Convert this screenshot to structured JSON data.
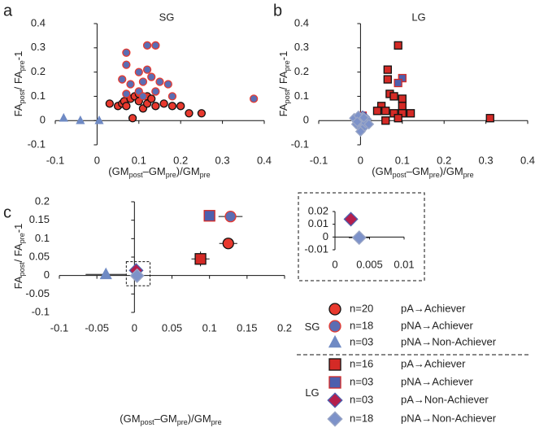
{
  "chart_data": [
    {
      "type": "scatter",
      "letter": "a",
      "title": "SG",
      "x_label": [
        "(GM",
        "post",
        "–GM",
        "pre",
        ")/GM",
        "pre"
      ],
      "y_label": [
        "FA",
        "post",
        "/ FA",
        "pre",
        "-1"
      ],
      "xlim": [
        -0.1,
        0.4
      ],
      "ylim": [
        -0.1,
        0.4
      ],
      "xticks": [
        -0.1,
        0,
        0.1,
        0.2,
        0.3,
        0.4
      ],
      "yticks": [
        -0.1,
        0,
        0.1,
        0.2,
        0.3,
        0.4
      ],
      "series": [
        {
          "marker": "circle",
          "color": "#e8392e",
          "edge": "#111",
          "x": [
            0.03,
            0.05,
            0.06,
            0.065,
            0.07,
            0.08,
            0.09,
            0.1,
            0.1,
            0.11,
            0.12,
            0.12,
            0.13,
            0.14,
            0.16,
            0.18,
            0.2,
            0.22,
            0.25,
            0.085
          ],
          "y": [
            0.07,
            0.06,
            0.07,
            0.08,
            0.06,
            0.09,
            0.1,
            0.11,
            0.08,
            0.05,
            0.1,
            0.07,
            0.09,
            0.06,
            0.07,
            0.06,
            0.06,
            0.03,
            0.03,
            0.01
          ]
        },
        {
          "marker": "circle",
          "color": "#5b6db3",
          "edge": "#e8392e",
          "x": [
            0.07,
            0.07,
            0.06,
            0.08,
            0.12,
            0.14,
            0.1,
            0.12,
            0.13,
            0.11,
            0.15,
            0.17,
            0.1,
            0.11,
            0.14,
            0.18,
            0.07,
            0.375
          ],
          "y": [
            0.28,
            0.23,
            0.17,
            0.15,
            0.31,
            0.31,
            0.2,
            0.21,
            0.18,
            0.16,
            0.16,
            0.15,
            0.12,
            0.1,
            0.12,
            0.1,
            0.11,
            0.09
          ]
        },
        {
          "marker": "triangle",
          "color": "#6f8ac4",
          "edge": "#6f8ac4",
          "x": [
            -0.08,
            -0.04,
            0.005
          ],
          "y": [
            0.01,
            0.0,
            0.0
          ]
        }
      ]
    },
    {
      "type": "scatter",
      "letter": "b",
      "title": "LG",
      "x_label": [
        "(GM",
        "post",
        "–GM",
        "pre",
        ")/GM",
        "pre"
      ],
      "y_label": [
        "FA",
        "post",
        "/ FA",
        "pre",
        "-1"
      ],
      "xlim": [
        -0.1,
        0.4
      ],
      "ylim": [
        -0.1,
        0.4
      ],
      "xticks": [
        -0.1,
        0,
        0.1,
        0.2,
        0.3,
        0.4
      ],
      "yticks": [
        -0.1,
        0,
        0.1,
        0.2,
        0.3,
        0.4
      ],
      "series": [
        {
          "marker": "square",
          "color": "#d42a26",
          "edge": "#111",
          "x": [
            0.09,
            0.065,
            0.065,
            0.07,
            0.08,
            0.1,
            0.05,
            0.1,
            0.04,
            0.06,
            0.08,
            0.1,
            0.12,
            0.09,
            0.06,
            0.31
          ],
          "y": [
            0.31,
            0.21,
            0.17,
            0.11,
            0.1,
            0.09,
            0.06,
            0.06,
            0.04,
            0.04,
            0.03,
            0.03,
            0.03,
            0.01,
            0.0,
            0.01
          ]
        },
        {
          "marker": "square",
          "color": "#4d5fae",
          "edge": "#d42a26",
          "x": [
            0.1,
            0.09,
            0.005
          ],
          "y": [
            0.175,
            0.155,
            0.02
          ]
        },
        {
          "marker": "diamond",
          "color": "#b51e4c",
          "edge": "#4d5fae",
          "x": [
            0.005,
            0.01,
            0.0
          ],
          "y": [
            0.02,
            0.015,
            0.01
          ]
        },
        {
          "marker": "diamond",
          "color": "#7d92c9",
          "edge": "#9aa6c6",
          "x": [
            -0.01,
            0.0,
            0.01,
            -0.005,
            0.005,
            0.0,
            -0.015,
            0.015,
            0.0,
            -0.01,
            0.01,
            0.005,
            -0.005,
            0.0,
            0.012,
            -0.008,
            0.008,
            0.02
          ],
          "y": [
            0.0,
            0.01,
            0.0,
            -0.02,
            -0.01,
            -0.03,
            0.01,
            0.005,
            -0.005,
            -0.015,
            -0.025,
            0.015,
            0.02,
            -0.045,
            -0.01,
            -0.005,
            0.012,
            -0.015
          ]
        }
      ]
    },
    {
      "type": "errorbar",
      "letter": "c",
      "x_label": [
        "(GM",
        "post",
        "–GM",
        "pre",
        ")/GM",
        "pre"
      ],
      "y_label": [
        "FA",
        "post",
        "/ FA",
        "pre",
        "-1"
      ],
      "xlim": [
        -0.1,
        0.2
      ],
      "ylim": [
        -0.1,
        0.2
      ],
      "xticks": [
        -0.1,
        -0.05,
        0,
        0.05,
        0.1,
        0.15,
        0.2
      ],
      "yticks": [
        -0.1,
        -0.05,
        0,
        0.05,
        0.1,
        0.15,
        0.2
      ],
      "inset": {
        "xlim": [
          0,
          0.01
        ],
        "ylim": [
          -0.01,
          0.02
        ],
        "xticks": [
          0,
          0.005,
          0.01
        ],
        "yticks": [
          -0.01,
          0,
          0.01,
          0.02
        ]
      },
      "groups": [
        {
          "name": "SG",
          "series": [
            {
              "name": "pA→Achiever",
              "n_label": "n=20",
              "marker": "circle",
              "color": "#e8392e",
              "edge": "#111",
              "x": [
                0.125
              ],
              "y": [
                0.087
              ],
              "xerr": [
                0.012
              ],
              "yerr": [
                0.008
              ]
            },
            {
              "name": "pNA→Achiever",
              "n_label": "n=18",
              "marker": "circle",
              "color": "#5b6db3",
              "edge": "#e8392e",
              "x": [
                0.128
              ],
              "y": [
                0.16
              ],
              "xerr": [
                0.016
              ],
              "yerr": [
                0.015
              ]
            },
            {
              "name": "pNA→Non-Achiever",
              "n_label": "n=03",
              "marker": "triangle",
              "color": "#6f8ac4",
              "edge": "#6f8ac4",
              "x": [
                -0.038
              ],
              "y": [
                0.003
              ],
              "xerr": [
                0.027
              ],
              "yerr": [
                0.003
              ]
            }
          ]
        },
        {
          "name": "LG",
          "series": [
            {
              "name": "pA→Achiever",
              "n_label": "n=16",
              "marker": "square",
              "color": "#d42a26",
              "edge": "#111",
              "x": [
                0.088
              ],
              "y": [
                0.045
              ],
              "xerr": [
                0.012
              ],
              "yerr": [
                0.02
              ]
            },
            {
              "name": "pNA→Achiever",
              "n_label": "n=03",
              "marker": "square",
              "color": "#4d5fae",
              "edge": "#d42a26",
              "x": [
                0.1
              ],
              "y": [
                0.162
              ],
              "xerr": [
                0.005
              ],
              "yerr": [
                0.005
              ]
            },
            {
              "name": "pA→Non-Achiever",
              "n_label": "n=03",
              "marker": "diamond",
              "color": "#b51e4c",
              "edge": "#4d5fae",
              "x": [
                0.0023
              ],
              "y": [
                0.014
              ],
              "xerr": [
                0.001
              ],
              "yerr": [
                0.004
              ]
            },
            {
              "name": "pNA→Non-Achiever",
              "n_label": "n=18",
              "marker": "diamond",
              "color": "#7d92c9",
              "edge": "#9aa6c6",
              "x": [
                0.0035
              ],
              "y": [
                -0.0005
              ],
              "xerr": [
                0.0015
              ],
              "yerr": [
                0.003
              ]
            }
          ]
        }
      ]
    }
  ]
}
